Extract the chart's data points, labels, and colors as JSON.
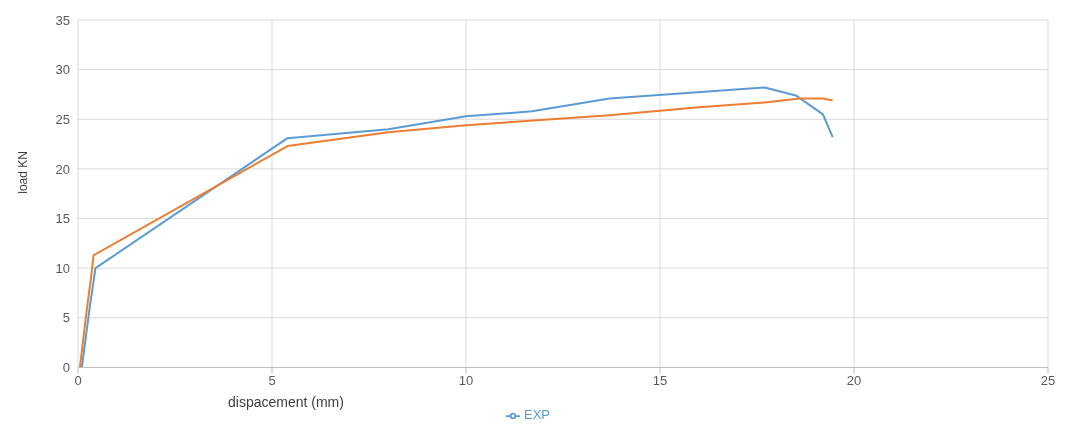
{
  "chart_data": {
    "type": "line",
    "xlabel": "dispacement (mm)",
    "ylabel": "load KN",
    "xlim": [
      0,
      25
    ],
    "xticks": [
      0,
      5,
      10,
      15,
      20,
      25
    ],
    "ylim": [
      0,
      35
    ],
    "yticks": [
      0,
      5,
      10,
      15,
      20,
      25,
      30,
      35
    ],
    "grid": true,
    "legend": "bottom",
    "marker": "none",
    "series": [
      {
        "name": "EXP",
        "color": "#5b9bd5",
        "x": [
          0.1,
          0.3,
          0.45,
          5.4,
          8,
          10,
          11.7,
          13.7,
          17.7,
          18.5,
          19.2,
          19.45
        ],
        "values": [
          0,
          6,
          10,
          23.1,
          24,
          25.3,
          25.8,
          27.1,
          28.2,
          27.4,
          25.5,
          23.2
        ]
      },
      {
        "color": "#ed7d31",
        "x": [
          0.05,
          0.2,
          0.35,
          0.4,
          5.4,
          8,
          10,
          13.7,
          16,
          17.7,
          18.6,
          19.2,
          19.45
        ],
        "values": [
          0,
          5,
          9.5,
          11.3,
          22.3,
          23.7,
          24.4,
          25.4,
          26.2,
          26.7,
          27.1,
          27.1,
          26.9
        ]
      }
    ]
  }
}
